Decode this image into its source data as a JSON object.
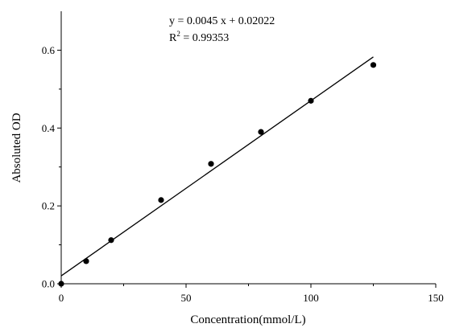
{
  "chart_data": {
    "type": "scatter",
    "xlabel": "Concentration(mmol/L)",
    "ylabel": "Absoluted OD",
    "xlim": [
      0,
      150
    ],
    "ylim": [
      0,
      0.7
    ],
    "x_ticks": [
      0,
      50,
      100,
      150
    ],
    "x_tick_labels": [
      "0",
      "50",
      "100",
      "150"
    ],
    "y_ticks": [
      0.0,
      0.2,
      0.4,
      0.6
    ],
    "y_tick_labels": [
      "0.0",
      "0.2",
      "0.4",
      "0.6"
    ],
    "grid": false,
    "series": [
      {
        "x": [
          0,
          10,
          20,
          40,
          60,
          80,
          100,
          125
        ],
        "y": [
          0.0,
          0.058,
          0.112,
          0.215,
          0.308,
          0.39,
          0.47,
          0.562
        ]
      }
    ],
    "fit_line": {
      "slope": 0.0045,
      "intercept": 0.02022,
      "x_range": [
        0,
        125
      ]
    },
    "annotations": {
      "equation": "y = 0.0045 x + 0.02022",
      "r2_prefix": "R",
      "r2_superscript": "2",
      "r2_value": " = 0.99353"
    },
    "colors": {
      "axis": "#000000",
      "points": "#000000",
      "line": "#000000"
    }
  }
}
